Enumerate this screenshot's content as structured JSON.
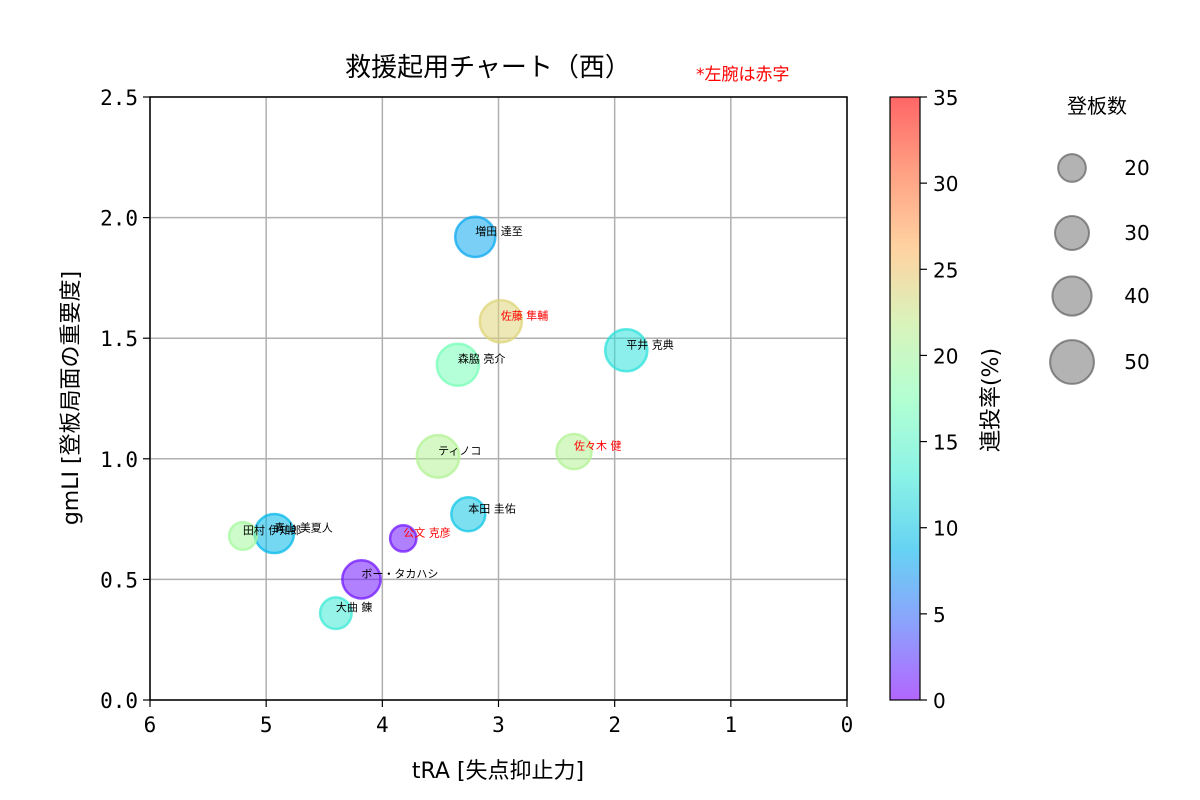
{
  "chart_data": {
    "type": "scatter",
    "title": "救援起用チャート（西）",
    "note": "*左腕は赤字",
    "xlabel": "tRA [失点抑止力]",
    "ylabel": "gmLI [登板局面の重要度]",
    "xlim": [
      6,
      0
    ],
    "ylim": [
      0,
      2.5
    ],
    "x_ticks": [
      "6",
      "5",
      "4",
      "3",
      "2",
      "1",
      "0"
    ],
    "y_ticks": [
      "0.0",
      "0.5",
      "1.0",
      "1.5",
      "2.0",
      "2.5"
    ],
    "grid": true,
    "colorbar": {
      "label": "連投率(%)",
      "range": [
        0,
        35
      ],
      "ticks": [
        "0",
        "5",
        "10",
        "15",
        "20",
        "25",
        "30",
        "35"
      ],
      "colormap": "rainbow"
    },
    "size_legend": {
      "title": "登板数",
      "entries": [
        "20",
        "30",
        "40",
        "50"
      ]
    },
    "points": [
      {
        "name": "増田 達至",
        "x": 3.2,
        "y": 1.92,
        "games": 42,
        "renpai": 8,
        "lefty": false
      },
      {
        "name": "佐藤 隼輔",
        "x": 2.98,
        "y": 1.57,
        "games": 46,
        "renpai": 24,
        "lefty": true
      },
      {
        "name": "平井 克典",
        "x": 1.9,
        "y": 1.45,
        "games": 46,
        "renpai": 12,
        "lefty": false
      },
      {
        "name": "森脇 亮介",
        "x": 3.35,
        "y": 1.39,
        "games": 46,
        "renpai": 17,
        "lefty": false
      },
      {
        "name": "ティノコ",
        "x": 3.52,
        "y": 1.01,
        "games": 47,
        "renpai": 21,
        "lefty": false
      },
      {
        "name": "佐々木 健",
        "x": 2.35,
        "y": 1.03,
        "games": 32,
        "renpai": 21,
        "lefty": true
      },
      {
        "name": "本田 圭佑",
        "x": 3.26,
        "y": 0.77,
        "games": 30,
        "renpai": 10,
        "lefty": false
      },
      {
        "name": "田村 伊知郎",
        "x": 5.2,
        "y": 0.68,
        "games": 20,
        "renpai": 20,
        "lefty": false
      },
      {
        "name": "青山 美夏人",
        "x": 4.93,
        "y": 0.69,
        "games": 40,
        "renpai": 9,
        "lefty": false
      },
      {
        "name": "公文 克彦",
        "x": 3.82,
        "y": 0.67,
        "games": 18,
        "renpai": 1,
        "lefty": true
      },
      {
        "name": "ボー・タカハシ",
        "x": 4.18,
        "y": 0.5,
        "games": 38,
        "renpai": 1,
        "lefty": false
      },
      {
        "name": "大曲 錬",
        "x": 4.4,
        "y": 0.36,
        "games": 26,
        "renpai": 13,
        "lefty": false
      }
    ]
  }
}
